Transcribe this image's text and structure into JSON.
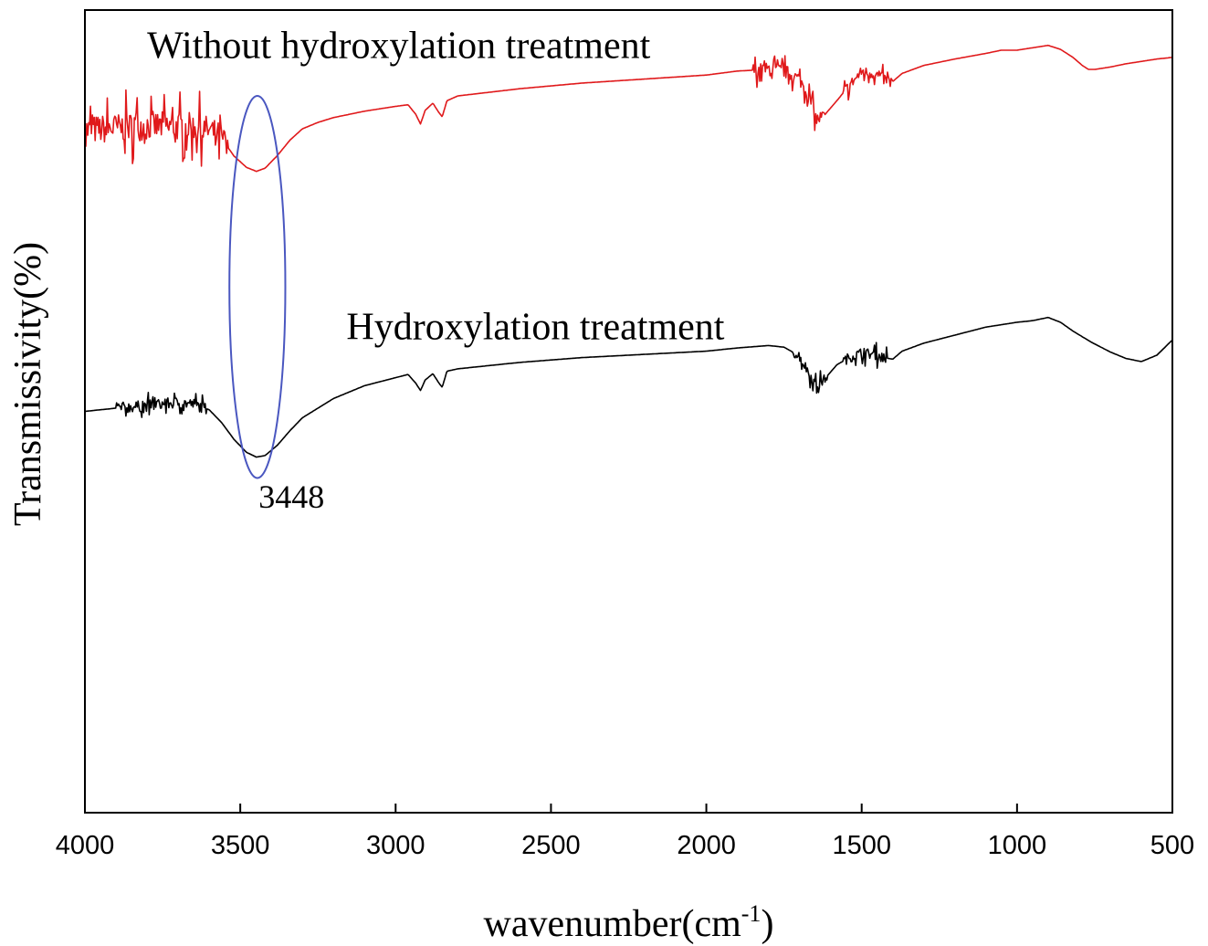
{
  "chart_data": {
    "type": "line",
    "xlabel": "wavenumber(cm",
    "xlabel_sup": "-1",
    "xlabel_close": ")",
    "ylabel": "Transmissivity(%)",
    "xlim": [
      4000,
      500
    ],
    "ylim": [
      0,
      100
    ],
    "x_reversed": true,
    "grid": false,
    "legend": "none",
    "xticks": [
      4000,
      3500,
      3000,
      2500,
      2000,
      1500,
      1000,
      500
    ],
    "xtick_labels": [
      "4000",
      "3500",
      "3000",
      "2500",
      "2000",
      "1500",
      "1000",
      "500"
    ],
    "series": [
      {
        "name": "Without hydroxylation treatment",
        "color": "#e0191b",
        "label_anchor": [
          2990,
          94
        ],
        "noise": [
          [
            4000,
            3540,
            2.6
          ],
          [
            1850,
            1620,
            1.2
          ],
          [
            1560,
            1400,
            1.0
          ]
        ],
        "points": [
          [
            4000,
            85.0
          ],
          [
            3900,
            85.3
          ],
          [
            3800,
            85.6
          ],
          [
            3700,
            85.5
          ],
          [
            3650,
            85.4
          ],
          [
            3600,
            85.0
          ],
          [
            3560,
            84.0
          ],
          [
            3520,
            81.8
          ],
          [
            3480,
            80.4
          ],
          [
            3448,
            79.9
          ],
          [
            3420,
            80.3
          ],
          [
            3380,
            81.9
          ],
          [
            3340,
            83.8
          ],
          [
            3300,
            85.2
          ],
          [
            3250,
            86.0
          ],
          [
            3200,
            86.6
          ],
          [
            3100,
            87.4
          ],
          [
            3000,
            88.0
          ],
          [
            2960,
            88.2
          ],
          [
            2935,
            87.0
          ],
          [
            2920,
            85.8
          ],
          [
            2905,
            87.5
          ],
          [
            2880,
            88.4
          ],
          [
            2862,
            87.3
          ],
          [
            2850,
            86.7
          ],
          [
            2835,
            88.7
          ],
          [
            2800,
            89.3
          ],
          [
            2600,
            90.2
          ],
          [
            2400,
            90.9
          ],
          [
            2200,
            91.4
          ],
          [
            2000,
            91.9
          ],
          [
            1900,
            92.4
          ],
          [
            1800,
            92.6
          ],
          [
            1750,
            92.4
          ],
          [
            1700,
            91.4
          ],
          [
            1670,
            89.3
          ],
          [
            1645,
            86.3
          ],
          [
            1620,
            86.9
          ],
          [
            1580,
            88.7
          ],
          [
            1540,
            90.6
          ],
          [
            1500,
            92.3
          ],
          [
            1460,
            92.1
          ],
          [
            1430,
            91.4
          ],
          [
            1400,
            91.1
          ],
          [
            1370,
            92.1
          ],
          [
            1300,
            93.1
          ],
          [
            1200,
            93.9
          ],
          [
            1100,
            94.6
          ],
          [
            1050,
            95.0
          ],
          [
            1000,
            95.0
          ],
          [
            950,
            95.3
          ],
          [
            900,
            95.6
          ],
          [
            860,
            95.1
          ],
          [
            820,
            94.1
          ],
          [
            790,
            93.1
          ],
          [
            770,
            92.6
          ],
          [
            750,
            92.6
          ],
          [
            700,
            92.9
          ],
          [
            650,
            93.3
          ],
          [
            600,
            93.6
          ],
          [
            550,
            93.9
          ],
          [
            500,
            94.1
          ]
        ]
      },
      {
        "name": "Hydroxylation treatment",
        "color": "#000000",
        "label_anchor": [
          2550,
          59
        ],
        "noise": [
          [
            3900,
            3610,
            1.0
          ],
          [
            1720,
            1610,
            0.9
          ],
          [
            1560,
            1420,
            0.9
          ]
        ],
        "points": [
          [
            4000,
            50.0
          ],
          [
            3900,
            50.4
          ],
          [
            3800,
            50.7
          ],
          [
            3700,
            51.1
          ],
          [
            3650,
            50.9
          ],
          [
            3600,
            50.2
          ],
          [
            3560,
            48.6
          ],
          [
            3520,
            46.5
          ],
          [
            3480,
            44.9
          ],
          [
            3448,
            44.3
          ],
          [
            3420,
            44.5
          ],
          [
            3380,
            45.8
          ],
          [
            3340,
            47.6
          ],
          [
            3300,
            49.2
          ],
          [
            3200,
            51.6
          ],
          [
            3100,
            53.2
          ],
          [
            3000,
            54.2
          ],
          [
            2960,
            54.6
          ],
          [
            2935,
            53.5
          ],
          [
            2920,
            52.6
          ],
          [
            2905,
            53.9
          ],
          [
            2880,
            54.7
          ],
          [
            2862,
            53.6
          ],
          [
            2850,
            53.0
          ],
          [
            2835,
            55.0
          ],
          [
            2800,
            55.3
          ],
          [
            2600,
            56.1
          ],
          [
            2400,
            56.7
          ],
          [
            2200,
            57.1
          ],
          [
            2000,
            57.5
          ],
          [
            1900,
            57.9
          ],
          [
            1800,
            58.2
          ],
          [
            1750,
            58.0
          ],
          [
            1700,
            56.9
          ],
          [
            1670,
            54.8
          ],
          [
            1645,
            53.1
          ],
          [
            1620,
            54.0
          ],
          [
            1580,
            55.8
          ],
          [
            1540,
            56.7
          ],
          [
            1500,
            57.3
          ],
          [
            1460,
            57.1
          ],
          [
            1430,
            56.7
          ],
          [
            1400,
            56.5
          ],
          [
            1370,
            57.5
          ],
          [
            1300,
            58.5
          ],
          [
            1200,
            59.5
          ],
          [
            1100,
            60.5
          ],
          [
            1000,
            61.1
          ],
          [
            950,
            61.3
          ],
          [
            900,
            61.7
          ],
          [
            860,
            61.1
          ],
          [
            820,
            60.0
          ],
          [
            760,
            58.6
          ],
          [
            700,
            57.4
          ],
          [
            650,
            56.6
          ],
          [
            600,
            56.2
          ],
          [
            550,
            57.0
          ],
          [
            500,
            58.9
          ]
        ]
      }
    ],
    "annotations": [
      {
        "type": "ellipse",
        "center": [
          3445,
          65.5
        ],
        "rx": 90,
        "ry": 28,
        "color": "#4a57c0"
      },
      {
        "type": "text",
        "text": "3448",
        "at": [
          3335,
          38
        ]
      }
    ]
  }
}
